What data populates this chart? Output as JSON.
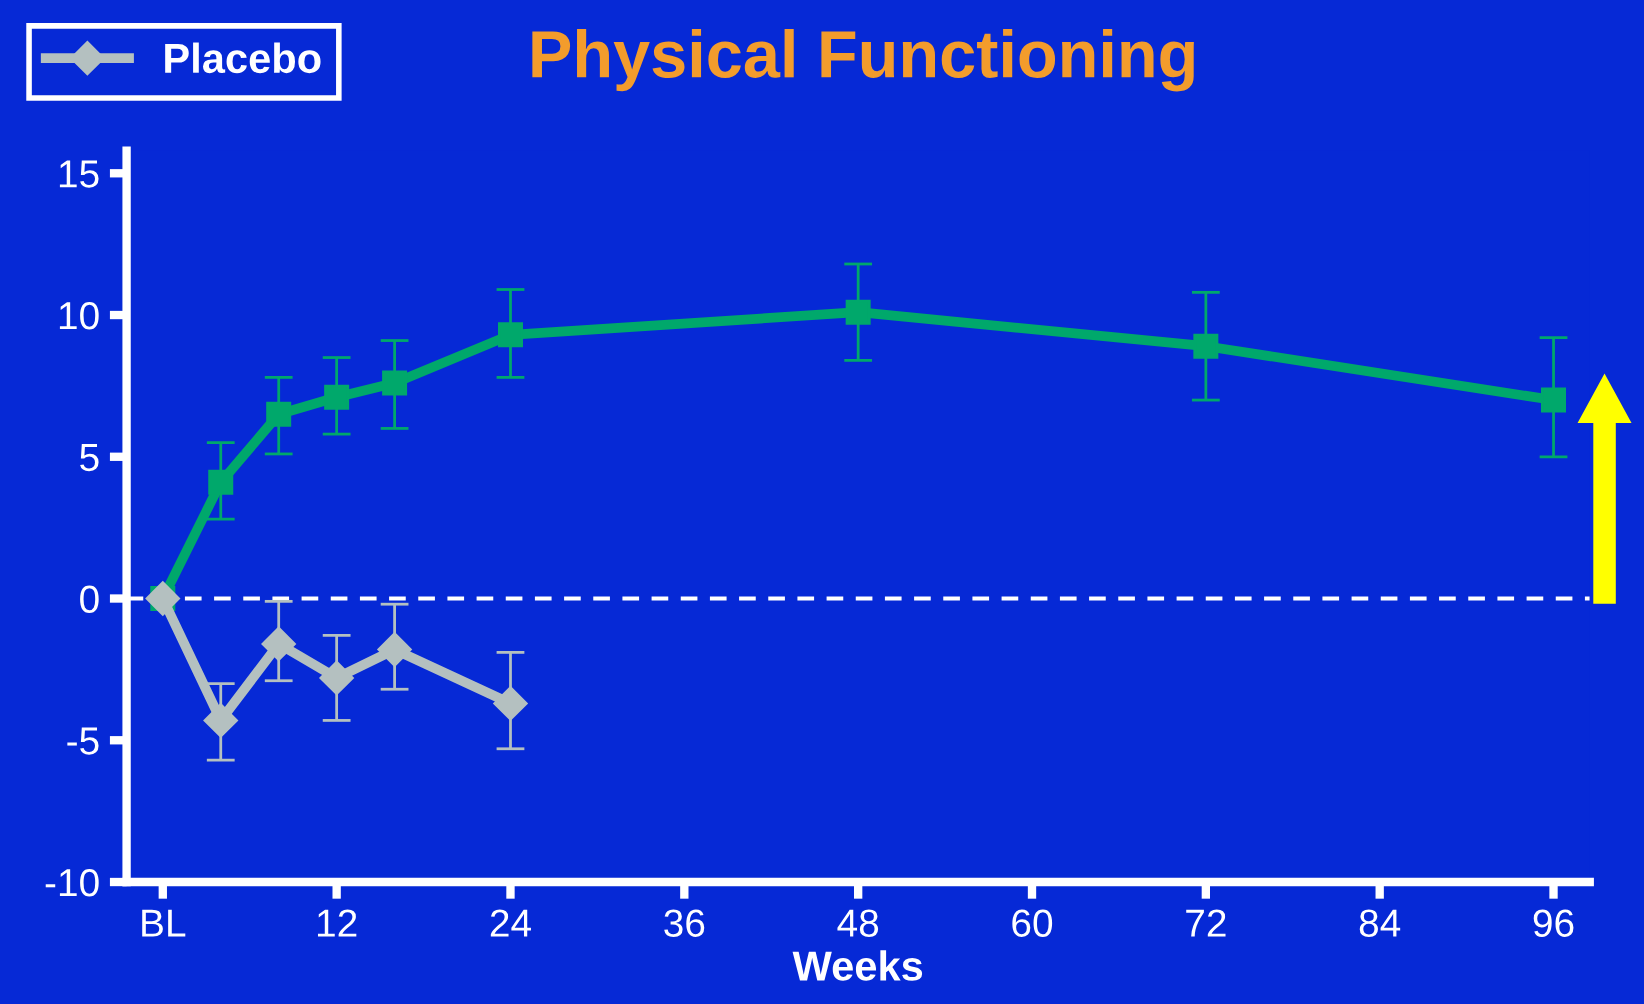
{
  "chart_data": {
    "type": "line",
    "title": "Physical Functioning",
    "xlabel": "Weeks",
    "xlim": [
      -2.5,
      98.5
    ],
    "ylim": [
      -10,
      15.8
    ],
    "xticks": [
      {
        "value": 0,
        "label": "BL"
      },
      12,
      24,
      36,
      48,
      60,
      72,
      84,
      96
    ],
    "yticks": [
      -10,
      -5,
      0,
      5,
      10,
      15
    ],
    "grid": false,
    "legend": "top left",
    "line_style": "solid",
    "ref_lines": [
      {
        "axis": "y",
        "value": 0,
        "color": "#ffffff",
        "line_style": "dashed"
      }
    ],
    "series": [
      {
        "color": "#00a86b",
        "marker": "square",
        "x": [
          0,
          4,
          8,
          12,
          16,
          24,
          48,
          72,
          96
        ],
        "values": [
          0,
          4.1,
          6.5,
          7.1,
          7.6,
          9.3,
          10.1,
          8.9,
          7.0
        ],
        "errors": [
          null,
          [
            2.8,
            5.5
          ],
          [
            5.1,
            7.8
          ],
          [
            5.8,
            8.5
          ],
          [
            6.0,
            9.1
          ],
          [
            7.8,
            10.9
          ],
          [
            8.4,
            11.8
          ],
          [
            7.0,
            10.8
          ],
          [
            5.0,
            9.2
          ]
        ]
      },
      {
        "name": "Placebo",
        "color": "#b4c0c0",
        "marker": "diamond",
        "x": [
          0,
          4,
          8,
          12,
          16,
          24
        ],
        "values": [
          0,
          -4.3,
          -1.6,
          -2.8,
          -1.8,
          -3.7
        ],
        "errors": [
          null,
          [
            -5.7,
            -3.0
          ],
          [
            -2.9,
            -0.1
          ],
          [
            -4.3,
            -1.3
          ],
          [
            -3.2,
            -0.2
          ],
          [
            -5.3,
            -1.9
          ]
        ]
      }
    ]
  }
}
